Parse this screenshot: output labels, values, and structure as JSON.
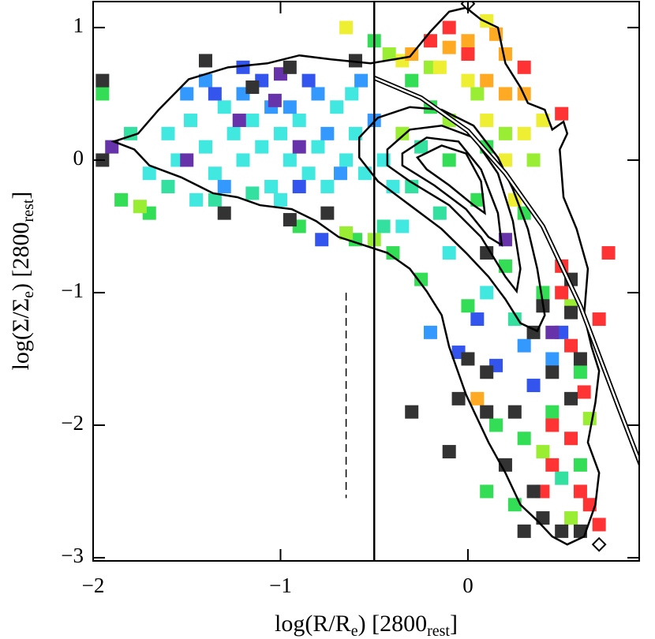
{
  "chart_data": {
    "type": "binned-scatter",
    "xlabel": [
      "log(R/R",
      "e",
      ")  [2800",
      "rest",
      "]"
    ],
    "ylabel": [
      "log(Σ/Σ",
      "e",
      ")  [2800",
      "rest",
      "]"
    ],
    "xlim": [
      -2,
      0.914
    ],
    "ylim": [
      -3.024,
      1.196
    ],
    "xticks": [
      {
        "value": -2,
        "label": "−2"
      },
      {
        "value": -1,
        "label": "−1"
      },
      0
    ],
    "yticks": [
      {
        "value": -3,
        "label": "−3"
      },
      {
        "value": -2,
        "label": "−2"
      },
      {
        "value": -1,
        "label": "−1"
      },
      0,
      1
    ],
    "series": [
      {
        "color": "#40e8e0",
        "x": [
          -1.6,
          -1.55,
          -1.48,
          -1.4,
          -1.35,
          -1.3,
          -1.25,
          -1.2,
          -1.15,
          -1.1,
          -1.05,
          -1.0,
          -0.95,
          -0.9,
          -0.85,
          -0.8,
          -0.75,
          -0.7,
          -0.65,
          -0.6,
          -0.55,
          -1.45,
          -1.7,
          -1.0,
          -0.62,
          -0.45,
          -0.4,
          -0.35,
          0.1,
          -0.1
        ],
        "y": [
          0.2,
          0.0,
          0.3,
          0.1,
          -0.1,
          0.4,
          0.2,
          0.0,
          0.3,
          0.1,
          -0.2,
          0.2,
          0.0,
          0.3,
          -0.1,
          0.1,
          -0.2,
          0.4,
          0.0,
          0.2,
          -0.1,
          -0.3,
          -0.1,
          -0.3,
          0.5,
          0.0,
          -0.2,
          -0.5,
          -1.0,
          -0.7
        ]
      },
      {
        "color": "#3399ff",
        "x": [
          -1.5,
          -1.4,
          -1.2,
          -1.05,
          -0.95,
          -0.8,
          -0.75,
          -0.68,
          -1.3,
          -0.5,
          -0.57,
          0.3,
          -0.2,
          0.45
        ],
        "y": [
          0.5,
          0.6,
          0.5,
          0.4,
          0.4,
          0.5,
          0.2,
          -0.1,
          -0.2,
          0.3,
          0.6,
          -1.4,
          -1.3,
          -1.5
        ]
      },
      {
        "color": "#3355ee",
        "x": [
          -1.2,
          -1.1,
          -0.9,
          -0.85,
          -0.78,
          -1.35,
          0.05,
          0.35,
          -0.05,
          0.5,
          0.15
        ],
        "y": [
          0.7,
          0.6,
          -0.2,
          0.6,
          -0.6,
          0.5,
          -1.2,
          -1.7,
          -1.45,
          -1.3,
          -1.55
        ]
      },
      {
        "color": "#6633aa",
        "x": [
          -1.9,
          -1.0,
          -1.22,
          -0.9,
          -1.5,
          0.45,
          0.2,
          -1.03
        ],
        "y": [
          0.1,
          0.65,
          0.3,
          0.1,
          0.0,
          -1.3,
          -0.6,
          0.45
        ]
      },
      {
        "color": "#33e0a0",
        "x": [
          -1.8,
          -1.6,
          -1.35,
          -0.45,
          -0.3,
          -0.25,
          -0.15,
          0.25,
          0.5,
          -1.15
        ],
        "y": [
          0.2,
          -0.2,
          -0.3,
          -0.5,
          -0.2,
          0.1,
          -0.4,
          -1.2,
          -2.4,
          -0.25
        ]
      },
      {
        "color": "#33dd55",
        "x": [
          -1.95,
          -1.85,
          -0.6,
          -0.4,
          -0.3,
          -0.2,
          -0.1,
          0.05,
          0.1,
          0.2,
          0.3,
          0.4,
          -0.25,
          0.0,
          0.15,
          0.3,
          0.45,
          0.6,
          0.25,
          0.1,
          0.6,
          -0.5,
          -0.9,
          -1.7
        ],
        "y": [
          0.5,
          -0.3,
          -0.6,
          -0.7,
          0.6,
          0.4,
          0.0,
          -0.3,
          0.1,
          -0.8,
          -0.4,
          -1.0,
          -0.9,
          -1.1,
          -2.0,
          -2.1,
          -1.9,
          -1.6,
          -2.6,
          -2.5,
          -2.3,
          0.9,
          -0.5,
          -0.4
        ]
      },
      {
        "color": "#99ee33",
        "x": [
          -1.75,
          -0.5,
          -0.35,
          -0.2,
          -0.1,
          0.05,
          0.2,
          0.35,
          -0.65,
          0.55,
          0.4,
          0.55,
          -0.42,
          0.65
        ],
        "y": [
          -0.35,
          -0.6,
          0.2,
          0.7,
          0.3,
          0.5,
          0.2,
          0.0,
          -0.55,
          -1.1,
          -2.2,
          -2.7,
          0.8,
          -1.95
        ]
      },
      {
        "color": "#eeee33",
        "x": [
          -0.65,
          0.1,
          0.2,
          0.3,
          0.0,
          -0.15,
          0.25,
          0.4,
          0.1,
          -0.35
        ],
        "y": [
          1.0,
          0.3,
          0.0,
          0.2,
          0.6,
          0.7,
          -0.3,
          0.3,
          1.05,
          0.75
        ]
      },
      {
        "color": "#ffaa22",
        "x": [
          -0.3,
          0.0,
          0.1,
          0.2,
          0.3,
          0.2,
          -0.1,
          0.05,
          0.15
        ],
        "y": [
          0.8,
          0.9,
          0.6,
          0.8,
          0.5,
          0.5,
          0.85,
          -1.8,
          0.95
        ]
      },
      {
        "color": "#ff3333",
        "x": [
          -0.2,
          0.0,
          -0.1,
          0.3,
          0.5,
          0.5,
          0.55,
          0.7,
          0.75,
          0.45,
          0.55,
          0.6,
          0.4,
          0.65,
          0.45,
          0.7,
          0.62,
          0.5
        ],
        "y": [
          0.9,
          0.8,
          1.0,
          0.7,
          0.35,
          -0.8,
          -1.4,
          -1.2,
          -0.7,
          -2.0,
          -2.1,
          -2.5,
          -2.5,
          -2.6,
          -2.3,
          -2.75,
          -1.75,
          -1.0
        ]
      },
      {
        "color": "#333333",
        "x": [
          -1.95,
          -1.95,
          -1.15,
          -1.4,
          -0.95,
          -1.3,
          -0.75,
          -0.95,
          -0.6,
          0.4,
          0.35,
          0.0,
          0.1,
          -0.05,
          0.1,
          0.25,
          0.45,
          0.55,
          0.6,
          0.55,
          0.35,
          0.3,
          0.5,
          0.6,
          -0.3,
          0.4,
          0.55,
          0.1,
          0.2,
          -0.1
        ],
        "y": [
          0.6,
          0.0,
          0.55,
          0.75,
          0.7,
          -0.4,
          -0.4,
          -0.45,
          0.75,
          -1.1,
          -1.3,
          -1.5,
          -1.6,
          -1.8,
          -1.9,
          -1.9,
          -1.6,
          -1.8,
          -1.5,
          -1.15,
          -2.5,
          -2.8,
          -2.8,
          -2.8,
          -1.9,
          -2.7,
          -0.9,
          -0.7,
          -2.3,
          -2.2
        ]
      }
    ],
    "contours": [
      {
        "x": [
          -1.89,
          -1.76,
          -1.65,
          -1.49,
          -1.28,
          -1.07,
          -0.9,
          -0.73,
          -0.52,
          -0.31,
          -0.2,
          -0.1,
          -0.01,
          0.07,
          0.16,
          0.2,
          0.28,
          0.32,
          0.41,
          0.45,
          0.51,
          0.53,
          0.49,
          0.51,
          0.58,
          0.64,
          0.62,
          0.66,
          0.7,
          0.68,
          0.64,
          0.7,
          0.68,
          0.62,
          0.53,
          0.45,
          0.37,
          0.28,
          0.2,
          0.11,
          -0.01,
          -0.1,
          -0.14,
          -0.22,
          -0.31,
          -0.43,
          -0.56,
          -0.69,
          -0.81,
          -0.94,
          -1.11,
          -1.23,
          -1.36,
          -1.53,
          -1.7,
          -1.78
        ],
        "y": [
          0.14,
          0.2,
          0.38,
          0.61,
          0.7,
          0.73,
          0.79,
          0.76,
          0.73,
          0.78,
          0.97,
          1.12,
          1.15,
          1.06,
          1.0,
          0.73,
          0.55,
          0.43,
          0.38,
          0.23,
          0.29,
          0.2,
          0.08,
          -0.28,
          -0.52,
          -0.82,
          -1.17,
          -1.41,
          -1.59,
          -1.83,
          -2.13,
          -2.36,
          -2.6,
          -2.84,
          -2.9,
          -2.84,
          -2.72,
          -2.6,
          -2.36,
          -2.13,
          -1.77,
          -1.41,
          -1.17,
          -0.99,
          -0.82,
          -0.7,
          -0.64,
          -0.58,
          -0.46,
          -0.37,
          -0.34,
          -0.28,
          -0.25,
          -0.13,
          -0.04,
          0.08
        ]
      },
      {
        "x": [
          -0.58,
          -0.48,
          -0.31,
          -0.14,
          0.03,
          0.16,
          0.24,
          0.32,
          0.37,
          0.41,
          0.37,
          0.28,
          0.2,
          0.11,
          -0.01,
          -0.14,
          -0.31,
          -0.48,
          -0.58
        ],
        "y": [
          0.17,
          0.32,
          0.4,
          0.38,
          0.26,
          0.02,
          -0.22,
          -0.52,
          -0.82,
          -1.17,
          -1.29,
          -1.23,
          -1.05,
          -0.88,
          -0.7,
          -0.52,
          -0.34,
          -0.16,
          0.02
        ]
      },
      {
        "x": [
          -0.43,
          -0.31,
          -0.14,
          0.03,
          0.16,
          0.24,
          0.28,
          0.26,
          0.2,
          0.07,
          -0.1,
          -0.31,
          -0.43
        ],
        "y": [
          0.08,
          0.23,
          0.26,
          0.17,
          -0.1,
          -0.46,
          -0.82,
          -0.99,
          -0.88,
          -0.58,
          -0.34,
          -0.16,
          -0.04
        ]
      },
      {
        "x": [
          -0.35,
          -0.22,
          -0.05,
          0.07,
          0.16,
          0.18,
          0.11,
          -0.01,
          -0.18,
          -0.35
        ],
        "y": [
          0.05,
          0.17,
          0.14,
          -0.07,
          -0.4,
          -0.64,
          -0.58,
          -0.37,
          -0.19,
          -0.04
        ]
      },
      {
        "x": [
          -0.27,
          -0.14,
          -0.01,
          0.07,
          0.09,
          0.03,
          -0.1,
          -0.22
        ],
        "y": [
          0.02,
          0.11,
          0.05,
          -0.16,
          -0.4,
          -0.34,
          -0.19,
          -0.07
        ]
      }
    ],
    "model": {
      "x": [
        -0.5,
        -0.25,
        0,
        0.2,
        0.4,
        0.6,
        0.8,
        0.99
      ],
      "y": [
        0.62,
        0.47,
        0.22,
        -0.1,
        -0.5,
        -1.1,
        -1.85,
        -2.55
      ]
    },
    "vlines": [
      {
        "x": -0.5
      },
      {
        "x": -0.65,
        "y": [
          -1.0,
          -2.55
        ],
        "dash": true
      }
    ],
    "diamonds": {
      "x": [
        0,
        0.7
      ],
      "y": [
        1.18,
        -2.9
      ]
    }
  }
}
